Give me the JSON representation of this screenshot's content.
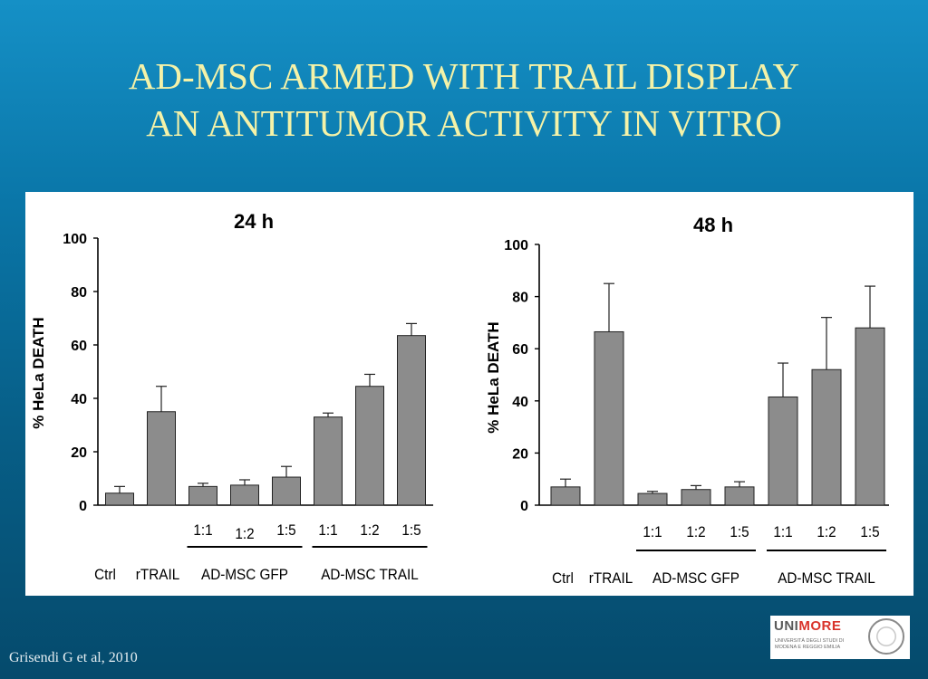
{
  "slide": {
    "title_line1": "AD-MSC ARMED WITH TRAIL DISPLAY",
    "title_line2": "AN ANTITUMOR ACTIVITY IN VITRO",
    "citation": "Grisendi G et al, 2010"
  },
  "logo": {
    "word_uni": "UNI",
    "word_more": "MORE",
    "subtitle": "UNIVERSITÀ DEGLI STUDI DI MODENA E REGGIO EMILIA"
  },
  "colors": {
    "title": "#f4f2a8",
    "bar_fill": "#8c8c8c",
    "axis": "#000000"
  },
  "chart_data": [
    {
      "type": "bar",
      "title": "24 h",
      "ylabel": "% HeLa DEATH",
      "ylim": [
        0,
        100
      ],
      "yticks": [
        0,
        20,
        40,
        60,
        80,
        100
      ],
      "categories": [
        "Ctrl",
        "rTRAIL",
        "1:1",
        "1:2",
        "1:5",
        "1:1",
        "1:2",
        "1:5"
      ],
      "values": [
        4.5,
        35,
        7,
        7.5,
        10.5,
        33,
        44.5,
        63.5
      ],
      "errors": [
        2.5,
        9.5,
        1.2,
        2,
        4,
        1.5,
        4.5,
        4.5
      ],
      "groups": [
        {
          "label": "AD-MSC GFP",
          "start": 2,
          "end": 4
        },
        {
          "label": "AD-MSC TRAIL",
          "start": 5,
          "end": 7
        }
      ],
      "grid": false
    },
    {
      "type": "bar",
      "title": "48 h",
      "ylabel": "% HeLa DEATH",
      "ylim": [
        0,
        100
      ],
      "yticks": [
        0,
        20,
        40,
        60,
        80,
        100
      ],
      "categories": [
        "Ctrl",
        "rTRAIL",
        "1:1",
        "1:2",
        "1:5",
        "1:1",
        "1:2",
        "1:5"
      ],
      "values": [
        7,
        66.5,
        4.5,
        6,
        7,
        41.5,
        52,
        68
      ],
      "errors": [
        3,
        18.5,
        0.8,
        1.5,
        2,
        13,
        20,
        16
      ],
      "groups": [
        {
          "label": "AD-MSC GFP",
          "start": 2,
          "end": 4
        },
        {
          "label": "AD-MSC TRAIL",
          "start": 5,
          "end": 7
        }
      ],
      "grid": false
    }
  ]
}
